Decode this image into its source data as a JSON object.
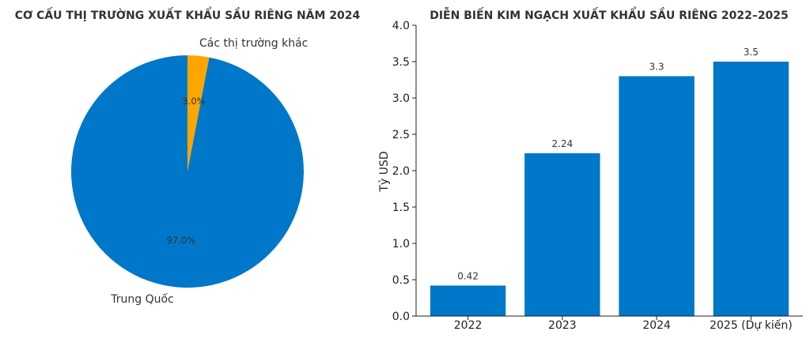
{
  "chart_data": [
    {
      "type": "pie",
      "title": "CƠ CẤU THỊ TRƯỜNG XUẤT KHẨU SẦU RIÊNG NĂM 2024",
      "slices": [
        {
          "label": "Các thị trường khác",
          "value": 3.0,
          "pct_label": "3.0%",
          "color": "#FFA500"
        },
        {
          "label": "Trung Quốc",
          "value": 97.0,
          "pct_label": "97.0%",
          "color": "#0077C8"
        }
      ]
    },
    {
      "type": "bar",
      "title": "DIỄN BIẾN KIM NGẠCH XUẤT KHẨU SẦU RIÊNG 2022–2025",
      "categories": [
        "2022",
        "2023",
        "2024",
        "2025 (Dự kiến)"
      ],
      "values": [
        0.42,
        2.24,
        3.3,
        3.5
      ],
      "value_labels": [
        "0.42",
        "2.24",
        "3.3",
        "3.5"
      ],
      "ylabel": "Tỷ USD",
      "ylim": [
        0,
        4.0
      ],
      "yticks": [
        "0.0",
        "0.5",
        "1.0",
        "1.5",
        "2.0",
        "2.5",
        "3.0",
        "3.5",
        "4.0"
      ],
      "color": "#0077C8"
    }
  ]
}
